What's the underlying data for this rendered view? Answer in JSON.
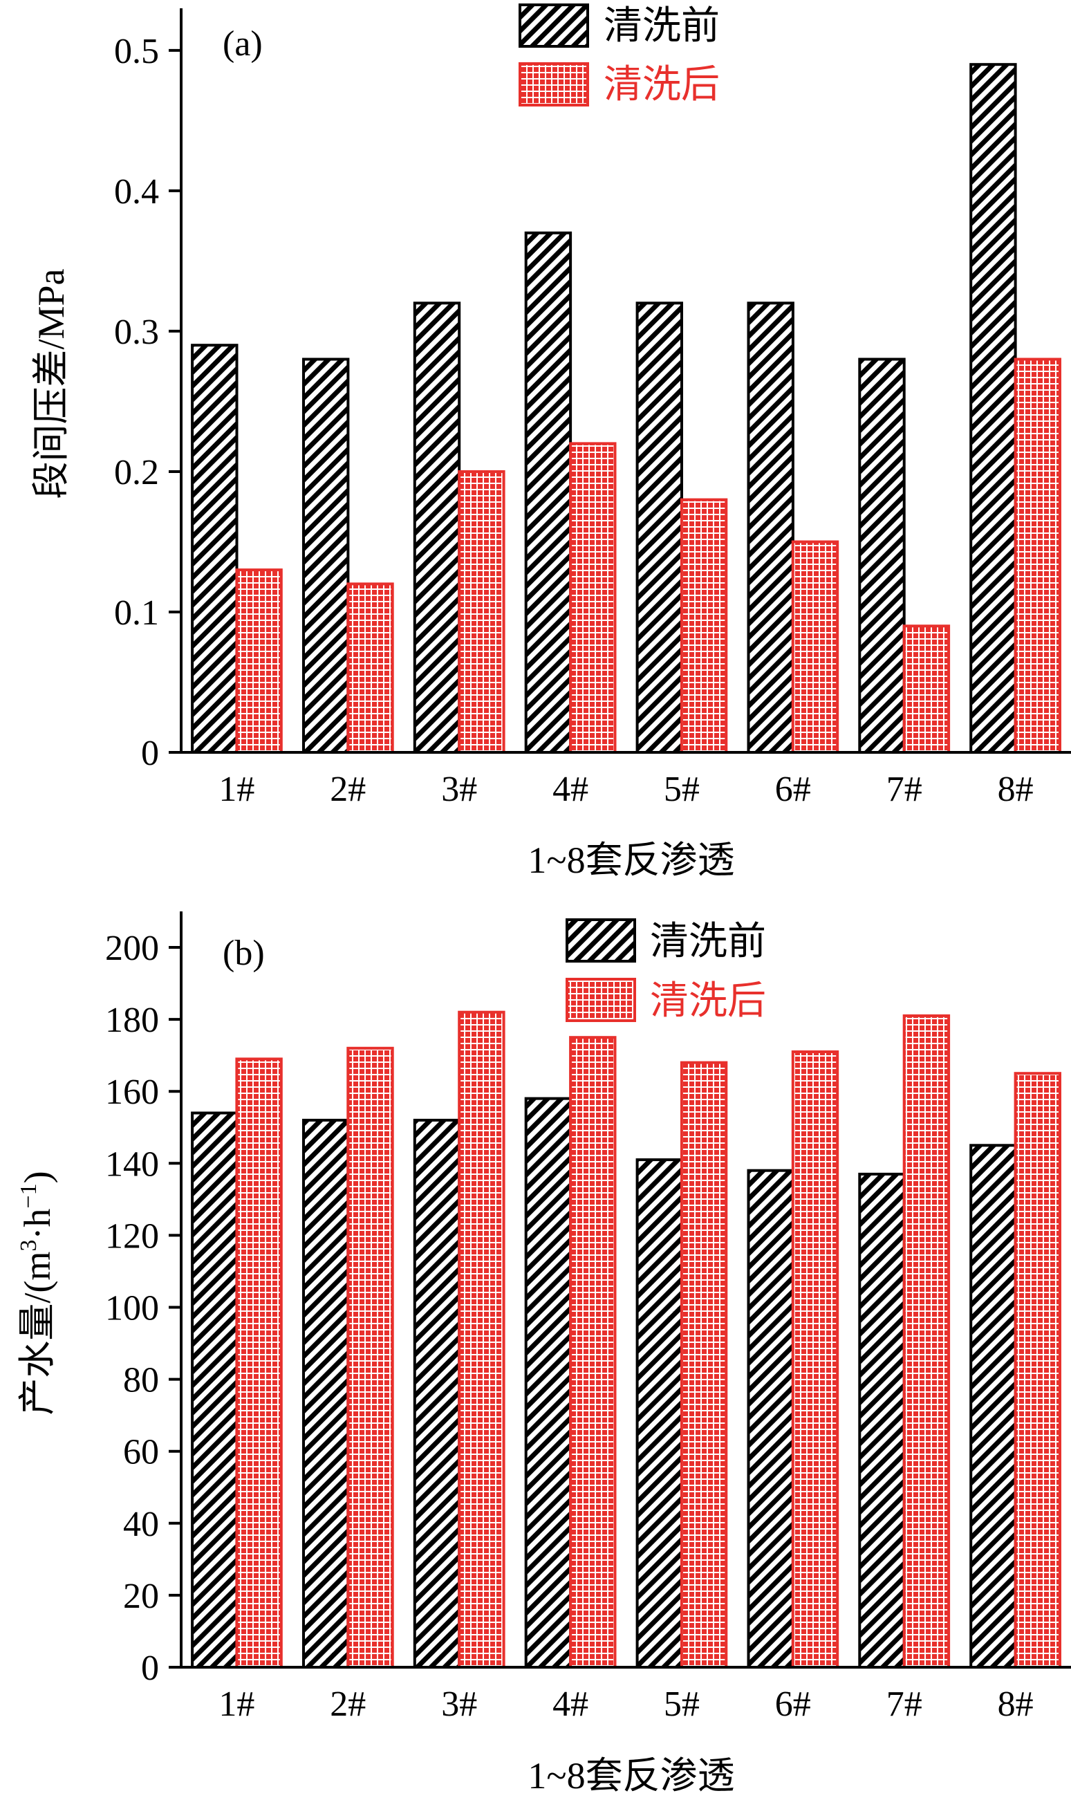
{
  "chart_data": [
    {
      "type": "bar",
      "panel_label": "(a)",
      "categories": [
        "1#",
        "2#",
        "3#",
        "4#",
        "5#",
        "6#",
        "7#",
        "8#"
      ],
      "series": [
        {
          "name": "清洗前",
          "values": [
            0.29,
            0.28,
            0.32,
            0.37,
            0.32,
            0.32,
            0.28,
            0.49
          ]
        },
        {
          "name": "清洗后",
          "values": [
            0.13,
            0.12,
            0.2,
            0.22,
            0.18,
            0.15,
            0.09,
            0.28
          ]
        }
      ],
      "xlabel": "1~8套反渗透",
      "ylabel": "段间压差/MPa",
      "ylim": [
        0,
        0.53
      ],
      "yticks": [
        0,
        0.1,
        0.2,
        0.3,
        0.4,
        0.5
      ],
      "ytick_labels": [
        "0",
        "0.1",
        "0.2",
        "0.3",
        "0.4",
        "0.5"
      ],
      "grid": false,
      "legend_position": "top-center"
    },
    {
      "type": "bar",
      "panel_label": "(b)",
      "categories": [
        "1#",
        "2#",
        "3#",
        "4#",
        "5#",
        "6#",
        "7#",
        "8#"
      ],
      "series": [
        {
          "name": "清洗前",
          "values": [
            154,
            152,
            152,
            158,
            141,
            138,
            137,
            145
          ]
        },
        {
          "name": "清洗后",
          "values": [
            169,
            172,
            182,
            175,
            168,
            171,
            181,
            165
          ]
        }
      ],
      "xlabel": "1~8套反渗透",
      "ylabel_main": "产水量/(m",
      "ylabel_sup1": "3",
      "ylabel_mid": "·h",
      "ylabel_sup2": "−1",
      "ylabel_end": ")",
      "ylim": [
        0,
        210
      ],
      "yticks": [
        0,
        20,
        40,
        60,
        80,
        100,
        120,
        140,
        160,
        180,
        200
      ],
      "ytick_labels": [
        "0",
        "20",
        "40",
        "60",
        "80",
        "100",
        "120",
        "140",
        "160",
        "180",
        "200"
      ],
      "grid": false,
      "legend_position": "top-center"
    }
  ],
  "colors": {
    "before_fill_pattern": "diagonal-hatch",
    "before_stroke": "#000000",
    "after_fill": "#e8302c",
    "after_grid_lines": "#ffffff",
    "axis": "#000000"
  }
}
